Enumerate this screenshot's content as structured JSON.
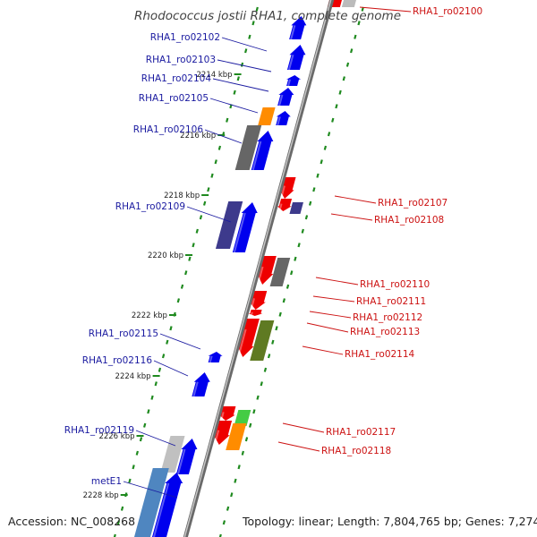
{
  "title": "Rhodococcus jostii RHA1, complete genome",
  "footer": {
    "accession": "Accession: NC_008268",
    "topology": "Topology: linear; Length: 7,804,765 bp; Genes: 7,274"
  },
  "colors": {
    "backbone": "#8c8c8c",
    "forward_gene": "#0000ee",
    "reverse_gene": "#ee0000",
    "tick": "#1f8a1f",
    "left_label": "#1a1aa0",
    "right_label": "#cc1111"
  },
  "ticks": [
    {
      "label": "2214 kbp"
    },
    {
      "label": "2216 kbp"
    },
    {
      "label": "2218 kbp"
    },
    {
      "label": "2220 kbp"
    },
    {
      "label": "2222 kbp"
    },
    {
      "label": "2224 kbp"
    },
    {
      "label": "2226 kbp"
    },
    {
      "label": "2228 kbp"
    }
  ],
  "left_labels": [
    "RHA1_ro02102",
    "RHA1_ro02103",
    "RHA1_ro02104",
    "RHA1_ro02105",
    "RHA1_ro02106",
    "RHA1_ro02109",
    "RHA1_ro02115",
    "RHA1_ro02116",
    "RHA1_ro02119",
    "metE1"
  ],
  "right_labels": [
    "RHA1_ro02100",
    "RHA1_ro02107",
    "RHA1_ro02108",
    "RHA1_ro02110",
    "RHA1_ro02111",
    "RHA1_ro02112",
    "RHA1_ro02113",
    "RHA1_ro02114",
    "RHA1_ro02117",
    "RHA1_ro02118"
  ]
}
